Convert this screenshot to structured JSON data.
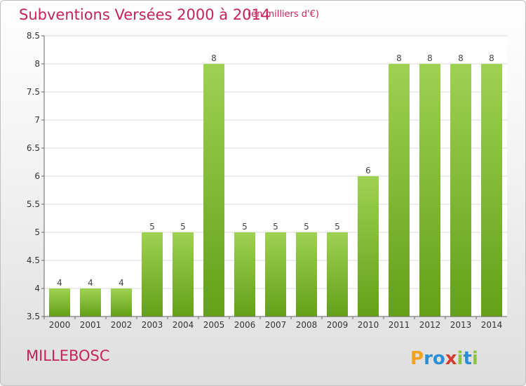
{
  "header": {
    "title": "Subventions Versées 2000 à 2014",
    "subtitle": "(en milliers d'€)"
  },
  "footer": {
    "commune": "MILLEBOSC",
    "logo_text": "Proxiti"
  },
  "colors": {
    "accent": "#c8215b",
    "bar_light": "#9fd152",
    "bar_dark": "#64a018",
    "logo_colors": [
      "#f2a21b",
      "#2b8fd6",
      "#d63b2f",
      "#8cc63e"
    ]
  },
  "chart_data": {
    "type": "bar",
    "title": "Subventions Versées 2000 à 2014",
    "subtitle": "(en milliers d'€)",
    "categories": [
      "2000",
      "2001",
      "2002",
      "2003",
      "2004",
      "2005",
      "2006",
      "2007",
      "2008",
      "2009",
      "2010",
      "2011",
      "2012",
      "2013",
      "2014"
    ],
    "values": [
      4,
      4,
      4,
      5,
      5,
      8,
      5,
      5,
      5,
      5,
      6,
      8,
      8,
      8,
      8
    ],
    "ylim": [
      3.5,
      8.5
    ],
    "yticks": [
      3.5,
      4,
      4.5,
      5,
      5.5,
      6,
      6.5,
      7,
      7.5,
      8,
      8.5
    ],
    "xlabel": "",
    "ylabel": "",
    "grid": true,
    "legend": "none",
    "data_labels": true
  }
}
